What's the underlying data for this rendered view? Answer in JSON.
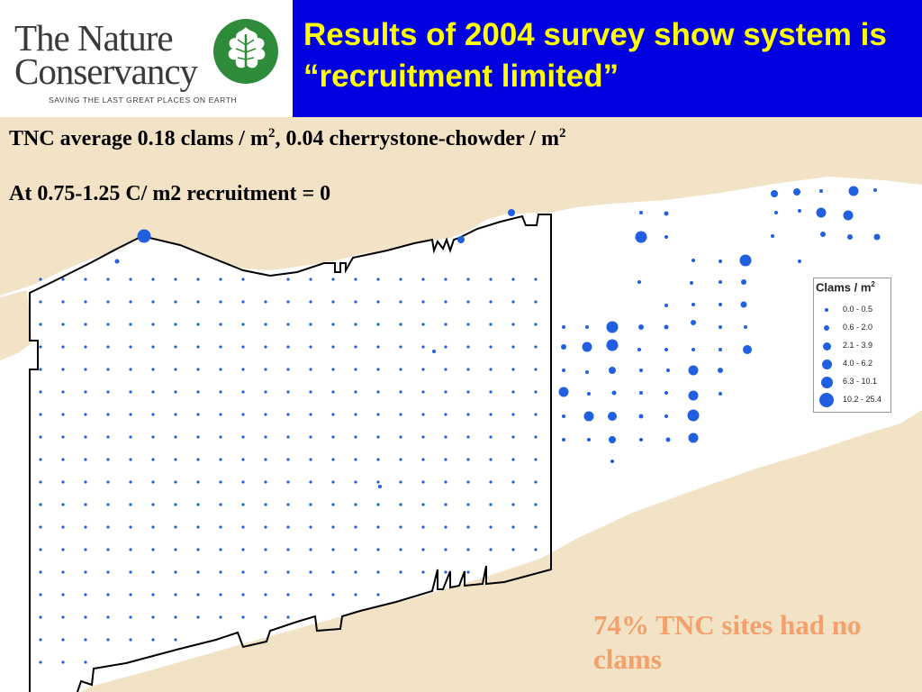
{
  "header": {
    "logo_line1": "The Nature",
    "logo_line2": "Conservancy",
    "logo_tagline": "SAVING THE LAST GREAT PLACES ON EARTH",
    "title": "Results of 2004 survey show system is “recruitment limited”"
  },
  "body": {
    "line1_part1": "TNC average 0.18 clams / m",
    "line1_sup1": "2",
    "line1_part2": ", 0.04 cherrystone-chowder / m",
    "line1_sup2": "2",
    "line2": "At 0.75-1.25 C/ m2 recruitment = 0",
    "note": "74% TNC sites had no clams"
  },
  "legend": {
    "title": "Clams / m",
    "title_sup": "2",
    "classes": [
      {
        "label": "0.0 - 0.5",
        "level": 1
      },
      {
        "label": "0.6 - 2.0",
        "level": 2
      },
      {
        "label": "2.1 - 3.9",
        "level": 3
      },
      {
        "label": "4.0 - 6.2",
        "level": 4
      },
      {
        "label": "6.3 - 10.1",
        "level": 5
      },
      {
        "label": "10.2 - 25.4",
        "level": 6
      }
    ]
  },
  "colors": {
    "header_bg": "#0000e0",
    "title_text": "#ffff00",
    "land": "#f2e3c6",
    "water": "#ffffff",
    "dot": "#1f5fe0",
    "note_text": "#f4a06a",
    "logo_green": "#2e8b3a"
  },
  "icons": [
    "oak-leaf-logo-icon"
  ]
}
